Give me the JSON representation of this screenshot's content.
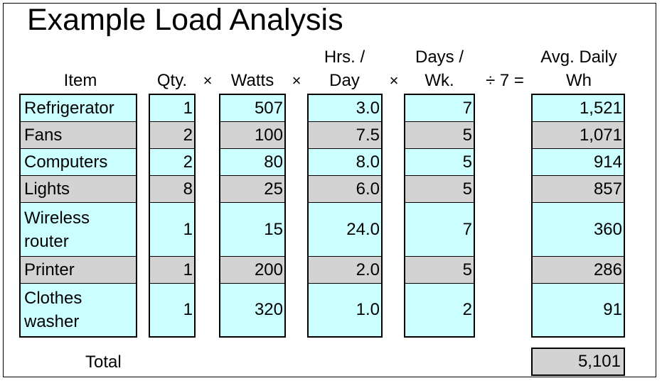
{
  "title": "Example Load Analysis",
  "colors": {
    "row_light": "#ccffff",
    "row_dark": "#d3d3d3",
    "border": "#000000"
  },
  "headers": {
    "item": "Item",
    "qty": "Qty.",
    "watts": "Watts",
    "hrs_line1": "Hrs. /",
    "hrs_line2": "Day",
    "days_line1": "Days /",
    "days_line2": "Wk.",
    "avg_line1": "Avg. Daily",
    "avg_line2": "Wh"
  },
  "operators": {
    "times1": "×",
    "times2": "×",
    "times3": "×",
    "div7": "÷ 7 ="
  },
  "rows": [
    {
      "item_line1": "Refrigerator",
      "item_line2": "",
      "qty": "1",
      "watts": "507",
      "hrs": "3.0",
      "days": "7",
      "wh": "1,521",
      "shade": "light"
    },
    {
      "item_line1": "Fans",
      "item_line2": "",
      "qty": "2",
      "watts": "100",
      "hrs": "7.5",
      "days": "5",
      "wh": "1,071",
      "shade": "dark"
    },
    {
      "item_line1": "Computers",
      "item_line2": "",
      "qty": "2",
      "watts": "80",
      "hrs": "8.0",
      "days": "5",
      "wh": "914",
      "shade": "light"
    },
    {
      "item_line1": "Lights",
      "item_line2": "",
      "qty": "8",
      "watts": "25",
      "hrs": "6.0",
      "days": "5",
      "wh": "857",
      "shade": "dark"
    },
    {
      "item_line1": "Wireless",
      "item_line2": "router",
      "qty": "1",
      "watts": "15",
      "hrs": "24.0",
      "days": "7",
      "wh": "360",
      "shade": "light"
    },
    {
      "item_line1": "Printer",
      "item_line2": "",
      "qty": "1",
      "watts": "200",
      "hrs": "2.0",
      "days": "5",
      "wh": "286",
      "shade": "dark"
    },
    {
      "item_line1": "Clothes",
      "item_line2": "washer",
      "qty": "1",
      "watts": "320",
      "hrs": "1.0",
      "days": "2",
      "wh": "91",
      "shade": "light"
    }
  ],
  "total": {
    "label": "Total",
    "value": "5,101"
  }
}
